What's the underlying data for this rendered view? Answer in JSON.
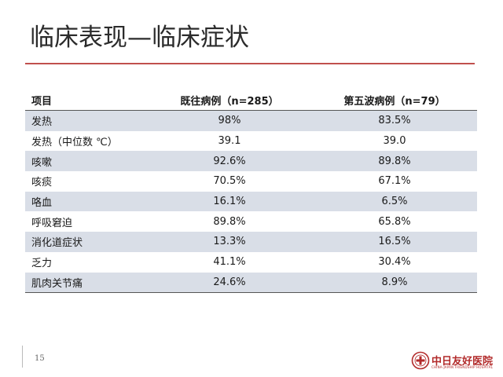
{
  "slide": {
    "title": "临床表现—临床症状",
    "page_number": "15"
  },
  "table": {
    "headers": [
      "项目",
      "既往病例（n=285）",
      "第五波病例（n=79）"
    ],
    "rows": [
      [
        "发热",
        "98%",
        "83.5%"
      ],
      [
        "发热（中位数 ℃）",
        "39.1",
        "39.0"
      ],
      [
        "咳嗽",
        "92.6%",
        "89.8%"
      ],
      [
        "咳痰",
        "70.5%",
        "67.1%"
      ],
      [
        "咯血",
        "16.1%",
        "6.5%"
      ],
      [
        "呼吸窘迫",
        "89.8%",
        "65.8%"
      ],
      [
        "消化道症状",
        "13.3%",
        "16.5%"
      ],
      [
        "乏力",
        "41.1%",
        "30.4%"
      ],
      [
        "肌肉关节痛",
        "24.6%",
        "8.9%"
      ]
    ]
  },
  "logo": {
    "name": "中日友好医院",
    "subtitle": "CHINA-JAPAN FRIENDSHIP HOSPITAL",
    "color": "#b22a2a"
  },
  "colors": {
    "accent_rule": "#c0504d",
    "row_band": "#d9dee7"
  }
}
